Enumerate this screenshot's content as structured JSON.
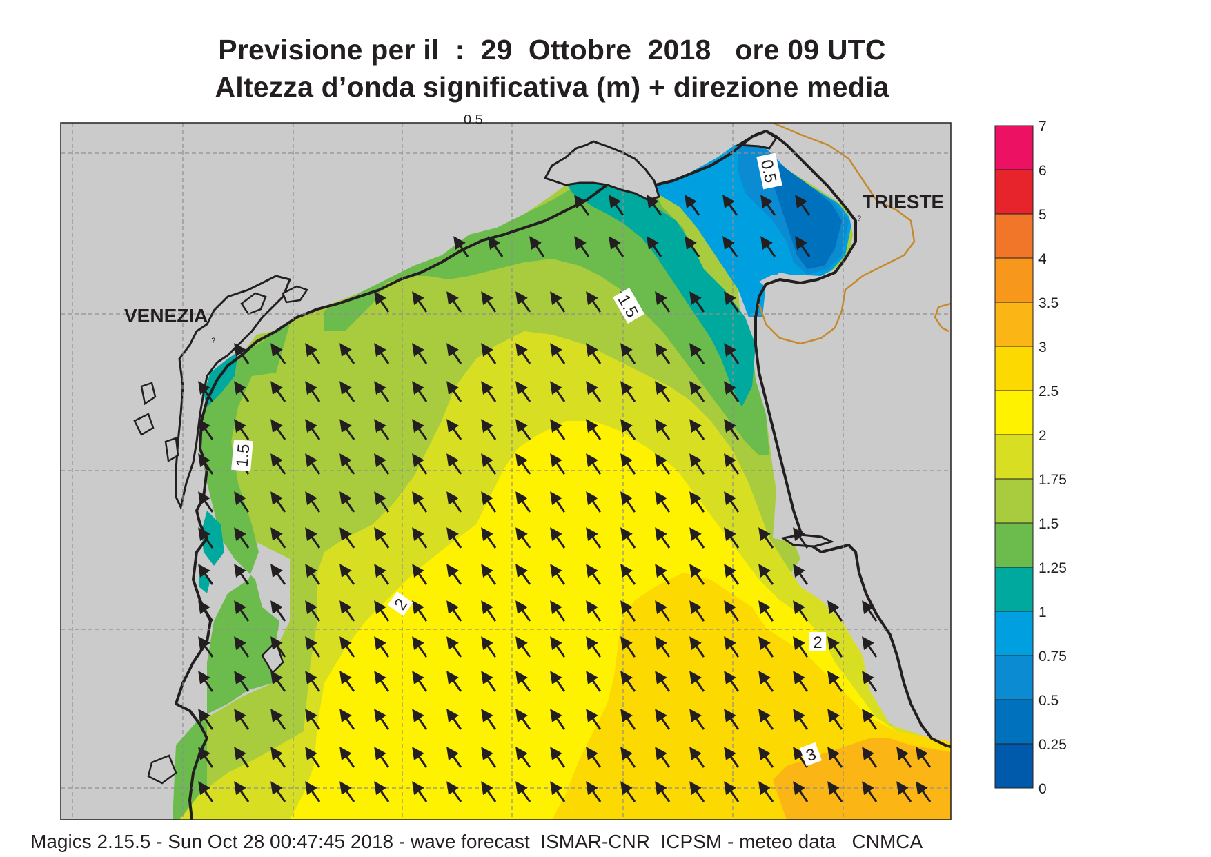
{
  "title": {
    "line1": "Previsione per il  :  29  Ottobre  2018   ore 09 UTC",
    "line2": "Altezza d’onda significativa (m) + direzione media"
  },
  "map": {
    "cities": [
      {
        "name": "VENEZIA"
      },
      {
        "name": "TRIESTE"
      }
    ],
    "contour_labels": [
      "0.5",
      "1.5",
      "1.5",
      "2",
      "2",
      "3"
    ],
    "partial_label": "0.5",
    "marker_glyph": "?",
    "colors": {
      "land": "#cbcbcb",
      "coastline": "#231f20",
      "border": "#c58a2e",
      "grid": "#8f8f8f",
      "arrow": "#231f20"
    },
    "wave_direction_description": "arrows pointing north-west"
  },
  "legend": {
    "levels": [
      "7",
      "6",
      "5",
      "4",
      "3.5",
      "3",
      "2.5",
      "2",
      "1.75",
      "1.5",
      "1.25",
      "1",
      "0.75",
      "0.5",
      "0.25",
      "0"
    ],
    "colors_top_to_bottom": [
      "#ec1163",
      "#e7232b",
      "#f2762a",
      "#f7981d",
      "#fbb616",
      "#fcd900",
      "#fff200",
      "#d8df23",
      "#a9cc3e",
      "#6cbb4d",
      "#00a99d",
      "#00a0e0",
      "#0b8bd1",
      "#0071bc",
      "#005aab"
    ]
  },
  "footer": {
    "text": "Magics 2.15.5 - Sun Oct 28 00:47:45 2018 - wave forecast  ISMAR-CNR  ICPSM - meteo data   CNMCA"
  }
}
